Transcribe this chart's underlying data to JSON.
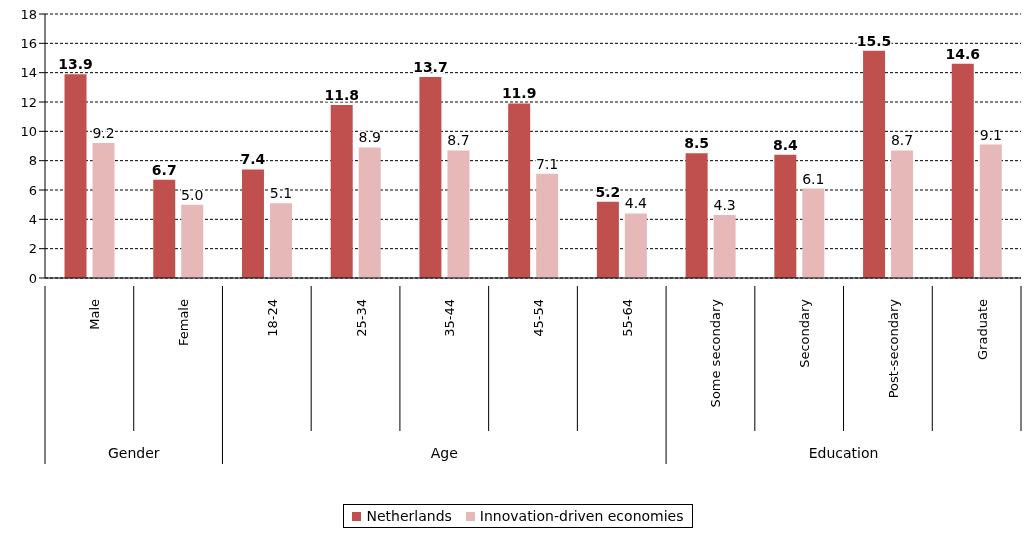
{
  "chart_data": {
    "type": "bar",
    "categories": [
      "Male",
      "Female",
      "18-24",
      "25-34",
      "35-44",
      "45-54",
      "55-64",
      "Some secondary",
      "Secondary",
      "Post-secondary",
      "Graduate"
    ],
    "series": [
      {
        "name": "Netherlands",
        "color": "#c0504d",
        "values": [
          13.9,
          6.7,
          7.4,
          11.8,
          13.7,
          11.9,
          5.2,
          8.5,
          8.4,
          15.5,
          14.6
        ],
        "value_labels": [
          "13.9",
          "6.7",
          "7.4",
          "11.8",
          "13.7",
          "11.9",
          "5.2",
          "8.5",
          "8.4",
          "15.5",
          "14.6"
        ]
      },
      {
        "name": "Innovation-driven economies",
        "color": "#e6b9b8",
        "values": [
          9.2,
          5.0,
          5.1,
          8.9,
          8.7,
          7.1,
          4.4,
          4.3,
          6.1,
          8.7,
          9.1
        ],
        "value_labels": [
          "9.2",
          "5.0",
          "5.1",
          "8.9",
          "8.7",
          "7.1",
          "4.4",
          "4.3",
          "6.1",
          "8.7",
          "9.1"
        ]
      }
    ],
    "annotations": [
      "Gender",
      "Age",
      "Education"
    ],
    "ylim": [
      0,
      18
    ],
    "yticks": [
      0,
      2,
      4,
      6,
      8,
      10,
      12,
      14,
      16,
      18
    ],
    "grid": "y",
    "legend": "bottom"
  }
}
